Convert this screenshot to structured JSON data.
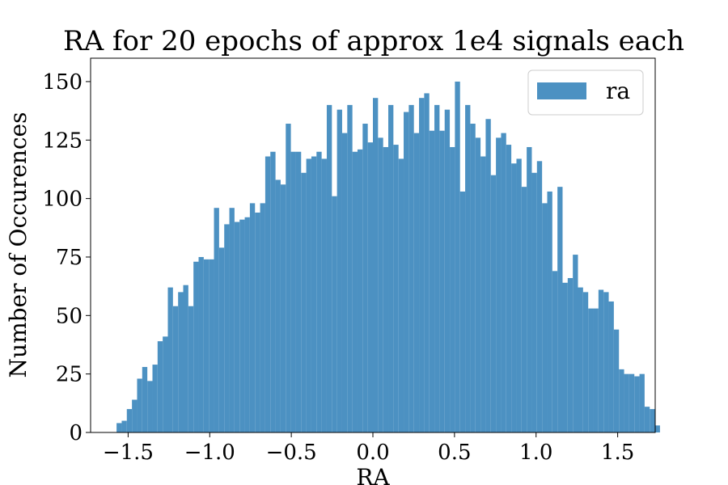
{
  "chart_data": {
    "type": "bar",
    "title": "RA for 20 epochs of approx 1e4 signals each",
    "xlabel": "RA",
    "ylabel": "Number of Occurences",
    "xlim": [
      -1.73,
      1.73
    ],
    "ylim": [
      0,
      160
    ],
    "xticks": [
      -1.5,
      -1.0,
      -0.5,
      0.0,
      0.5,
      1.0,
      1.5
    ],
    "xtick_labels": [
      "−1.5",
      "−1.0",
      "−0.5",
      "0.0",
      "0.5",
      "1.0",
      "1.5"
    ],
    "yticks": [
      0,
      25,
      50,
      75,
      100,
      125,
      150
    ],
    "ytick_labels": [
      "0",
      "25",
      "50",
      "75",
      "100",
      "125",
      "150"
    ],
    "bin_start": -1.5708,
    "bin_width": 0.031416,
    "series": [
      {
        "name": "ra",
        "color": "#4c91c2",
        "values": [
          4,
          5,
          10,
          14,
          23,
          28,
          22,
          29,
          39,
          41,
          62,
          54,
          60,
          63,
          54,
          73,
          75,
          74,
          74,
          96,
          79,
          89,
          96,
          90,
          91,
          92,
          98,
          94,
          98,
          118,
          120,
          108,
          106,
          132,
          120,
          120,
          111,
          117,
          118,
          120,
          117,
          140,
          101,
          138,
          128,
          140,
          120,
          121,
          132,
          124,
          143,
          126,
          122,
          140,
          123,
          117,
          137,
          140,
          128,
          143,
          145,
          129,
          140,
          129,
          138,
          122,
          150,
          103,
          140,
          132,
          126,
          118,
          134,
          110,
          126,
          128,
          123,
          115,
          117,
          105,
          122,
          111,
          116,
          98,
          103,
          69,
          105,
          64,
          66,
          76,
          62,
          60,
          53,
          53,
          61,
          60,
          56,
          44,
          27,
          25,
          25,
          24,
          25,
          11,
          10,
          3
        ]
      }
    ],
    "legend": {
      "position": "top-right",
      "entries": [
        "ra"
      ]
    },
    "grid": false
  }
}
